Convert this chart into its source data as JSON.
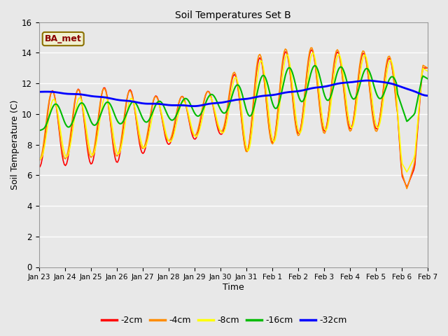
{
  "title": "Soil Temperatures Set B",
  "xlabel": "Time",
  "ylabel": "Soil Temperature (C)",
  "ylim": [
    0,
    16
  ],
  "yticks": [
    0,
    2,
    4,
    6,
    8,
    10,
    12,
    14,
    16
  ],
  "background_color": "#e8e8e8",
  "plot_bg_color": "#e8e8e8",
  "annotation_text": "BA_met",
  "annotation_color": "#8b0000",
  "annotation_bg": "#f0f0d0",
  "legend_entries": [
    "-2cm",
    "-4cm",
    "-8cm",
    "-16cm",
    "-32cm"
  ],
  "line_colors": [
    "#ff0000",
    "#ff8c00",
    "#ffff00",
    "#00bb00",
    "#0000ff"
  ],
  "line_widths": [
    1.2,
    1.2,
    1.2,
    1.5,
    2.0
  ],
  "xtick_labels": [
    "Jan 23",
    "Jan 24",
    "Jan 25",
    "Jan 26",
    "Jan 27",
    "Jan 28",
    "Jan 29",
    "Jan 30",
    "Jan 31",
    "Feb 1",
    "Feb 2",
    "Feb 3",
    "Feb 4",
    "Feb 5",
    "Feb 6",
    "Feb 7"
  ],
  "n_points": 337
}
